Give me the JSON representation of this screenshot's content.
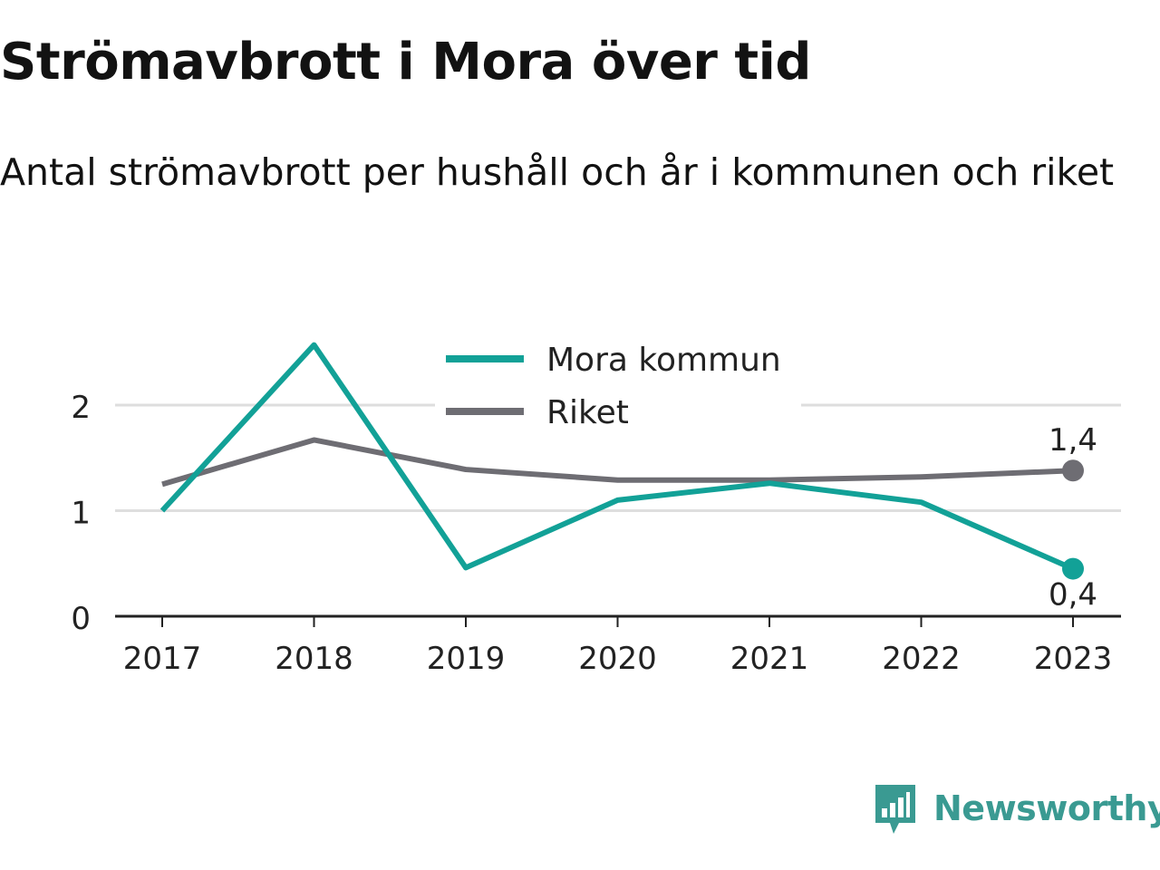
{
  "title": "Strömavbrott i Mora över tid",
  "subtitle": "Antal strömavbrott per hushåll och år i kommunen och riket",
  "brand": {
    "name": "Newsworthy",
    "icon": "bar-chart-speech-bubble-icon"
  },
  "colors": {
    "mora": "#12a197",
    "riket": "#6e6d73",
    "grid": "#dedede",
    "axis": "#222222",
    "brand": "#3a9a92"
  },
  "chart_data": {
    "type": "line",
    "x": [
      "2017",
      "2018",
      "2019",
      "2020",
      "2021",
      "2022",
      "2023"
    ],
    "series": [
      {
        "name": "Mora kommun",
        "values": [
          1.0,
          2.57,
          0.46,
          1.1,
          1.26,
          1.08,
          0.45
        ],
        "end_label": "0,4",
        "color": "#12a197"
      },
      {
        "name": "Riket",
        "values": [
          1.25,
          1.67,
          1.39,
          1.29,
          1.29,
          1.32,
          1.38
        ],
        "end_label": "1,4",
        "color": "#6e6d73"
      }
    ],
    "yticks": [
      "0",
      "1",
      "2"
    ],
    "ylim": [
      0,
      2.6
    ],
    "grid": true,
    "legend": "top-center"
  }
}
